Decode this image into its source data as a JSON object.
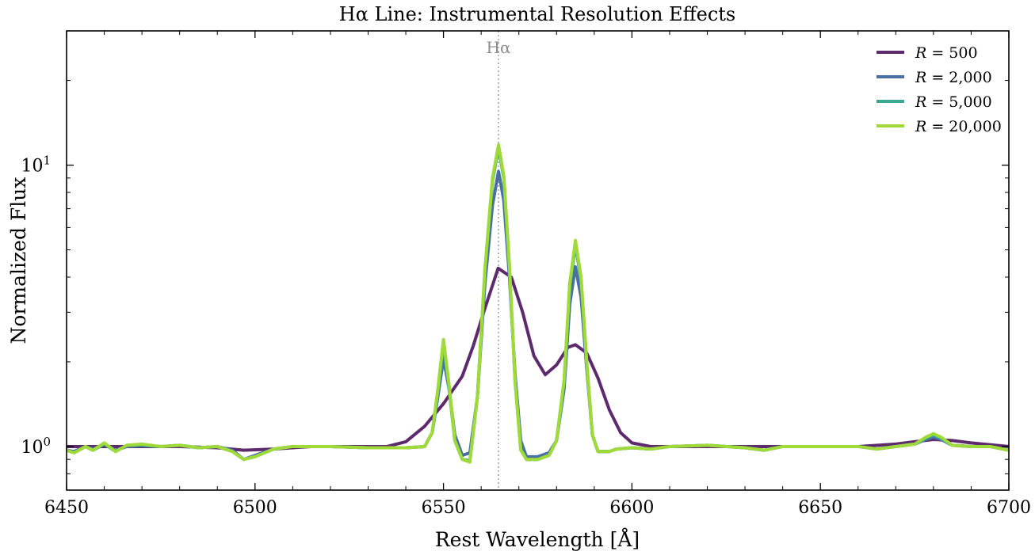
{
  "chart_data": {
    "type": "line",
    "title": "Hα Line: Instrumental Resolution Effects",
    "xlabel": "Rest Wavelength [Å]",
    "ylabel": "Normalized Flux",
    "xlim": [
      6450,
      6700
    ],
    "ylim": [
      0.7,
      30
    ],
    "yscale": "log",
    "xticks": [
      6450,
      6500,
      6550,
      6600,
      6650,
      6700
    ],
    "yticks": [
      {
        "value": 1,
        "base": "10",
        "exp": "0"
      },
      {
        "value": 10,
        "base": "10",
        "exp": "1"
      }
    ],
    "grid": false,
    "legend_position": "top-right",
    "annotation": {
      "label": "Hα",
      "x": 6564.6,
      "style": "dotted",
      "color": "#b0b0b0"
    },
    "series": [
      {
        "name": "R = 500",
        "legend_label": "R = 500",
        "color": "#5e2a6e",
        "points": [
          [
            6450,
            1.0
          ],
          [
            6460,
            1.0
          ],
          [
            6470,
            1.0
          ],
          [
            6480,
            1.0
          ],
          [
            6490,
            0.99
          ],
          [
            6497,
            0.97
          ],
          [
            6505,
            0.98
          ],
          [
            6515,
            1.0
          ],
          [
            6525,
            1.0
          ],
          [
            6535,
            1.0
          ],
          [
            6540,
            1.04
          ],
          [
            6545,
            1.18
          ],
          [
            6550,
            1.42
          ],
          [
            6555,
            1.78
          ],
          [
            6558,
            2.3
          ],
          [
            6561,
            3.1
          ],
          [
            6564.5,
            4.3
          ],
          [
            6568,
            4.0
          ],
          [
            6571,
            3.0
          ],
          [
            6574,
            2.1
          ],
          [
            6577,
            1.8
          ],
          [
            6580,
            1.95
          ],
          [
            6583,
            2.25
          ],
          [
            6585,
            2.3
          ],
          [
            6588,
            2.15
          ],
          [
            6591,
            1.75
          ],
          [
            6594,
            1.35
          ],
          [
            6597,
            1.12
          ],
          [
            6600,
            1.03
          ],
          [
            6605,
            1.0
          ],
          [
            6620,
            1.0
          ],
          [
            6640,
            1.0
          ],
          [
            6660,
            1.0
          ],
          [
            6670,
            1.02
          ],
          [
            6675,
            1.04
          ],
          [
            6680,
            1.06
          ],
          [
            6685,
            1.05
          ],
          [
            6690,
            1.03
          ],
          [
            6700,
            1.0
          ]
        ]
      },
      {
        "name": "R = 2,000",
        "legend_label": "R = 2,000",
        "color": "#4a6fa5",
        "points": [
          [
            6450,
            0.97
          ],
          [
            6452,
            0.96
          ],
          [
            6455,
            1.0
          ],
          [
            6457,
            0.98
          ],
          [
            6460,
            1.02
          ],
          [
            6463,
            0.97
          ],
          [
            6466,
            1.0
          ],
          [
            6470,
            1.01
          ],
          [
            6475,
            1.0
          ],
          [
            6480,
            1.01
          ],
          [
            6485,
            0.99
          ],
          [
            6490,
            1.0
          ],
          [
            6494,
            0.97
          ],
          [
            6497,
            0.9
          ],
          [
            6500,
            0.93
          ],
          [
            6505,
            0.98
          ],
          [
            6510,
            1.0
          ],
          [
            6520,
            1.0
          ],
          [
            6530,
            0.99
          ],
          [
            6540,
            0.99
          ],
          [
            6545,
            1.0
          ],
          [
            6547,
            1.12
          ],
          [
            6548.5,
            1.5
          ],
          [
            6550,
            2.05
          ],
          [
            6551.5,
            1.6
          ],
          [
            6553,
            1.1
          ],
          [
            6555,
            0.93
          ],
          [
            6557,
            0.95
          ],
          [
            6559,
            1.5
          ],
          [
            6561,
            3.8
          ],
          [
            6563,
            7.2
          ],
          [
            6564.6,
            9.5
          ],
          [
            6566,
            7.5
          ],
          [
            6567.5,
            4.0
          ],
          [
            6569,
            1.8
          ],
          [
            6570.5,
            1.05
          ],
          [
            6572,
            0.92
          ],
          [
            6575,
            0.92
          ],
          [
            6578,
            0.95
          ],
          [
            6580,
            1.05
          ],
          [
            6582,
            1.6
          ],
          [
            6583.5,
            3.2
          ],
          [
            6585,
            4.35
          ],
          [
            6586.5,
            3.4
          ],
          [
            6588,
            1.9
          ],
          [
            6589.5,
            1.1
          ],
          [
            6591,
            0.96
          ],
          [
            6594,
            0.96
          ],
          [
            6596,
            0.98
          ],
          [
            6600,
            0.99
          ],
          [
            6605,
            0.98
          ],
          [
            6610,
            1.0
          ],
          [
            6620,
            1.01
          ],
          [
            6630,
            0.99
          ],
          [
            6635,
            0.97
          ],
          [
            6640,
            1.0
          ],
          [
            6650,
            1.0
          ],
          [
            6660,
            1.0
          ],
          [
            6665,
            0.98
          ],
          [
            6670,
            1.0
          ],
          [
            6675,
            1.02
          ],
          [
            6678,
            1.06
          ],
          [
            6680,
            1.08
          ],
          [
            6682,
            1.06
          ],
          [
            6685,
            1.01
          ],
          [
            6690,
            1.0
          ],
          [
            6695,
            1.0
          ],
          [
            6700,
            0.97
          ]
        ]
      },
      {
        "name": "R = 5,000",
        "legend_label": "R = 5,000",
        "color": "#3aa893",
        "points": [
          [
            6450,
            0.97
          ],
          [
            6452,
            0.95
          ],
          [
            6455,
            1.0
          ],
          [
            6457,
            0.97
          ],
          [
            6460,
            1.02
          ],
          [
            6463,
            0.96
          ],
          [
            6466,
            1.01
          ],
          [
            6470,
            1.01
          ],
          [
            6475,
            1.0
          ],
          [
            6480,
            1.01
          ],
          [
            6485,
            0.99
          ],
          [
            6490,
            1.0
          ],
          [
            6494,
            0.96
          ],
          [
            6497,
            0.9
          ],
          [
            6500,
            0.92
          ],
          [
            6505,
            0.98
          ],
          [
            6510,
            1.0
          ],
          [
            6520,
            1.0
          ],
          [
            6530,
            0.99
          ],
          [
            6540,
            0.99
          ],
          [
            6545,
            1.0
          ],
          [
            6547,
            1.12
          ],
          [
            6548.5,
            1.55
          ],
          [
            6550,
            2.3
          ],
          [
            6551.5,
            1.6
          ],
          [
            6553,
            1.05
          ],
          [
            6555,
            0.9
          ],
          [
            6557,
            0.89
          ],
          [
            6559,
            1.5
          ],
          [
            6561,
            4.2
          ],
          [
            6563,
            8.8
          ],
          [
            6564.6,
            11.5
          ],
          [
            6566,
            9.0
          ],
          [
            6567.5,
            4.3
          ],
          [
            6569,
            1.7
          ],
          [
            6570.5,
            0.98
          ],
          [
            6572,
            0.9
          ],
          [
            6575,
            0.9
          ],
          [
            6578,
            0.93
          ],
          [
            6580,
            1.05
          ],
          [
            6582,
            1.7
          ],
          [
            6583.5,
            3.7
          ],
          [
            6585,
            5.2
          ],
          [
            6586.5,
            3.9
          ],
          [
            6588,
            2.0
          ],
          [
            6589.5,
            1.1
          ],
          [
            6591,
            0.96
          ],
          [
            6594,
            0.96
          ],
          [
            6596,
            0.98
          ],
          [
            6600,
            0.99
          ],
          [
            6605,
            0.98
          ],
          [
            6610,
            1.0
          ],
          [
            6620,
            1.01
          ],
          [
            6630,
            0.99
          ],
          [
            6635,
            0.97
          ],
          [
            6640,
            1.0
          ],
          [
            6650,
            1.0
          ],
          [
            6660,
            1.0
          ],
          [
            6665,
            0.98
          ],
          [
            6670,
            1.0
          ],
          [
            6675,
            1.02
          ],
          [
            6678,
            1.07
          ],
          [
            6680,
            1.1
          ],
          [
            6682,
            1.07
          ],
          [
            6685,
            1.01
          ],
          [
            6690,
            1.0
          ],
          [
            6695,
            1.0
          ],
          [
            6700,
            0.97
          ]
        ]
      },
      {
        "name": "R = 20,000",
        "legend_label": "R = 20,000",
        "color": "#a0da39",
        "points": [
          [
            6450,
            0.97
          ],
          [
            6452,
            0.95
          ],
          [
            6455,
            1.0
          ],
          [
            6457,
            0.97
          ],
          [
            6460,
            1.03
          ],
          [
            6463,
            0.96
          ],
          [
            6466,
            1.01
          ],
          [
            6470,
            1.02
          ],
          [
            6475,
            1.0
          ],
          [
            6480,
            1.01
          ],
          [
            6485,
            0.99
          ],
          [
            6490,
            1.0
          ],
          [
            6494,
            0.96
          ],
          [
            6497,
            0.9
          ],
          [
            6500,
            0.92
          ],
          [
            6505,
            0.98
          ],
          [
            6510,
            1.0
          ],
          [
            6520,
            1.0
          ],
          [
            6530,
            0.99
          ],
          [
            6540,
            0.99
          ],
          [
            6545,
            1.0
          ],
          [
            6547,
            1.12
          ],
          [
            6548.5,
            1.6
          ],
          [
            6550,
            2.4
          ],
          [
            6551.5,
            1.65
          ],
          [
            6553,
            1.05
          ],
          [
            6555,
            0.9
          ],
          [
            6557,
            0.88
          ],
          [
            6559,
            1.5
          ],
          [
            6561,
            4.3
          ],
          [
            6563,
            9.0
          ],
          [
            6564.6,
            11.8
          ],
          [
            6566,
            9.2
          ],
          [
            6567.5,
            4.4
          ],
          [
            6569,
            1.7
          ],
          [
            6570.5,
            0.97
          ],
          [
            6572,
            0.9
          ],
          [
            6575,
            0.9
          ],
          [
            6578,
            0.93
          ],
          [
            6580,
            1.05
          ],
          [
            6582,
            1.72
          ],
          [
            6583.5,
            3.8
          ],
          [
            6585,
            5.4
          ],
          [
            6586.5,
            4.0
          ],
          [
            6588,
            2.0
          ],
          [
            6589.5,
            1.1
          ],
          [
            6591,
            0.96
          ],
          [
            6594,
            0.96
          ],
          [
            6596,
            0.98
          ],
          [
            6600,
            0.99
          ],
          [
            6605,
            0.98
          ],
          [
            6610,
            1.0
          ],
          [
            6620,
            1.01
          ],
          [
            6630,
            0.99
          ],
          [
            6635,
            0.97
          ],
          [
            6640,
            1.0
          ],
          [
            6650,
            1.0
          ],
          [
            6660,
            1.0
          ],
          [
            6665,
            0.98
          ],
          [
            6670,
            1.0
          ],
          [
            6675,
            1.02
          ],
          [
            6678,
            1.08
          ],
          [
            6680,
            1.11
          ],
          [
            6682,
            1.08
          ],
          [
            6685,
            1.01
          ],
          [
            6690,
            1.0
          ],
          [
            6695,
            1.0
          ],
          [
            6700,
            0.97
          ]
        ]
      }
    ]
  }
}
